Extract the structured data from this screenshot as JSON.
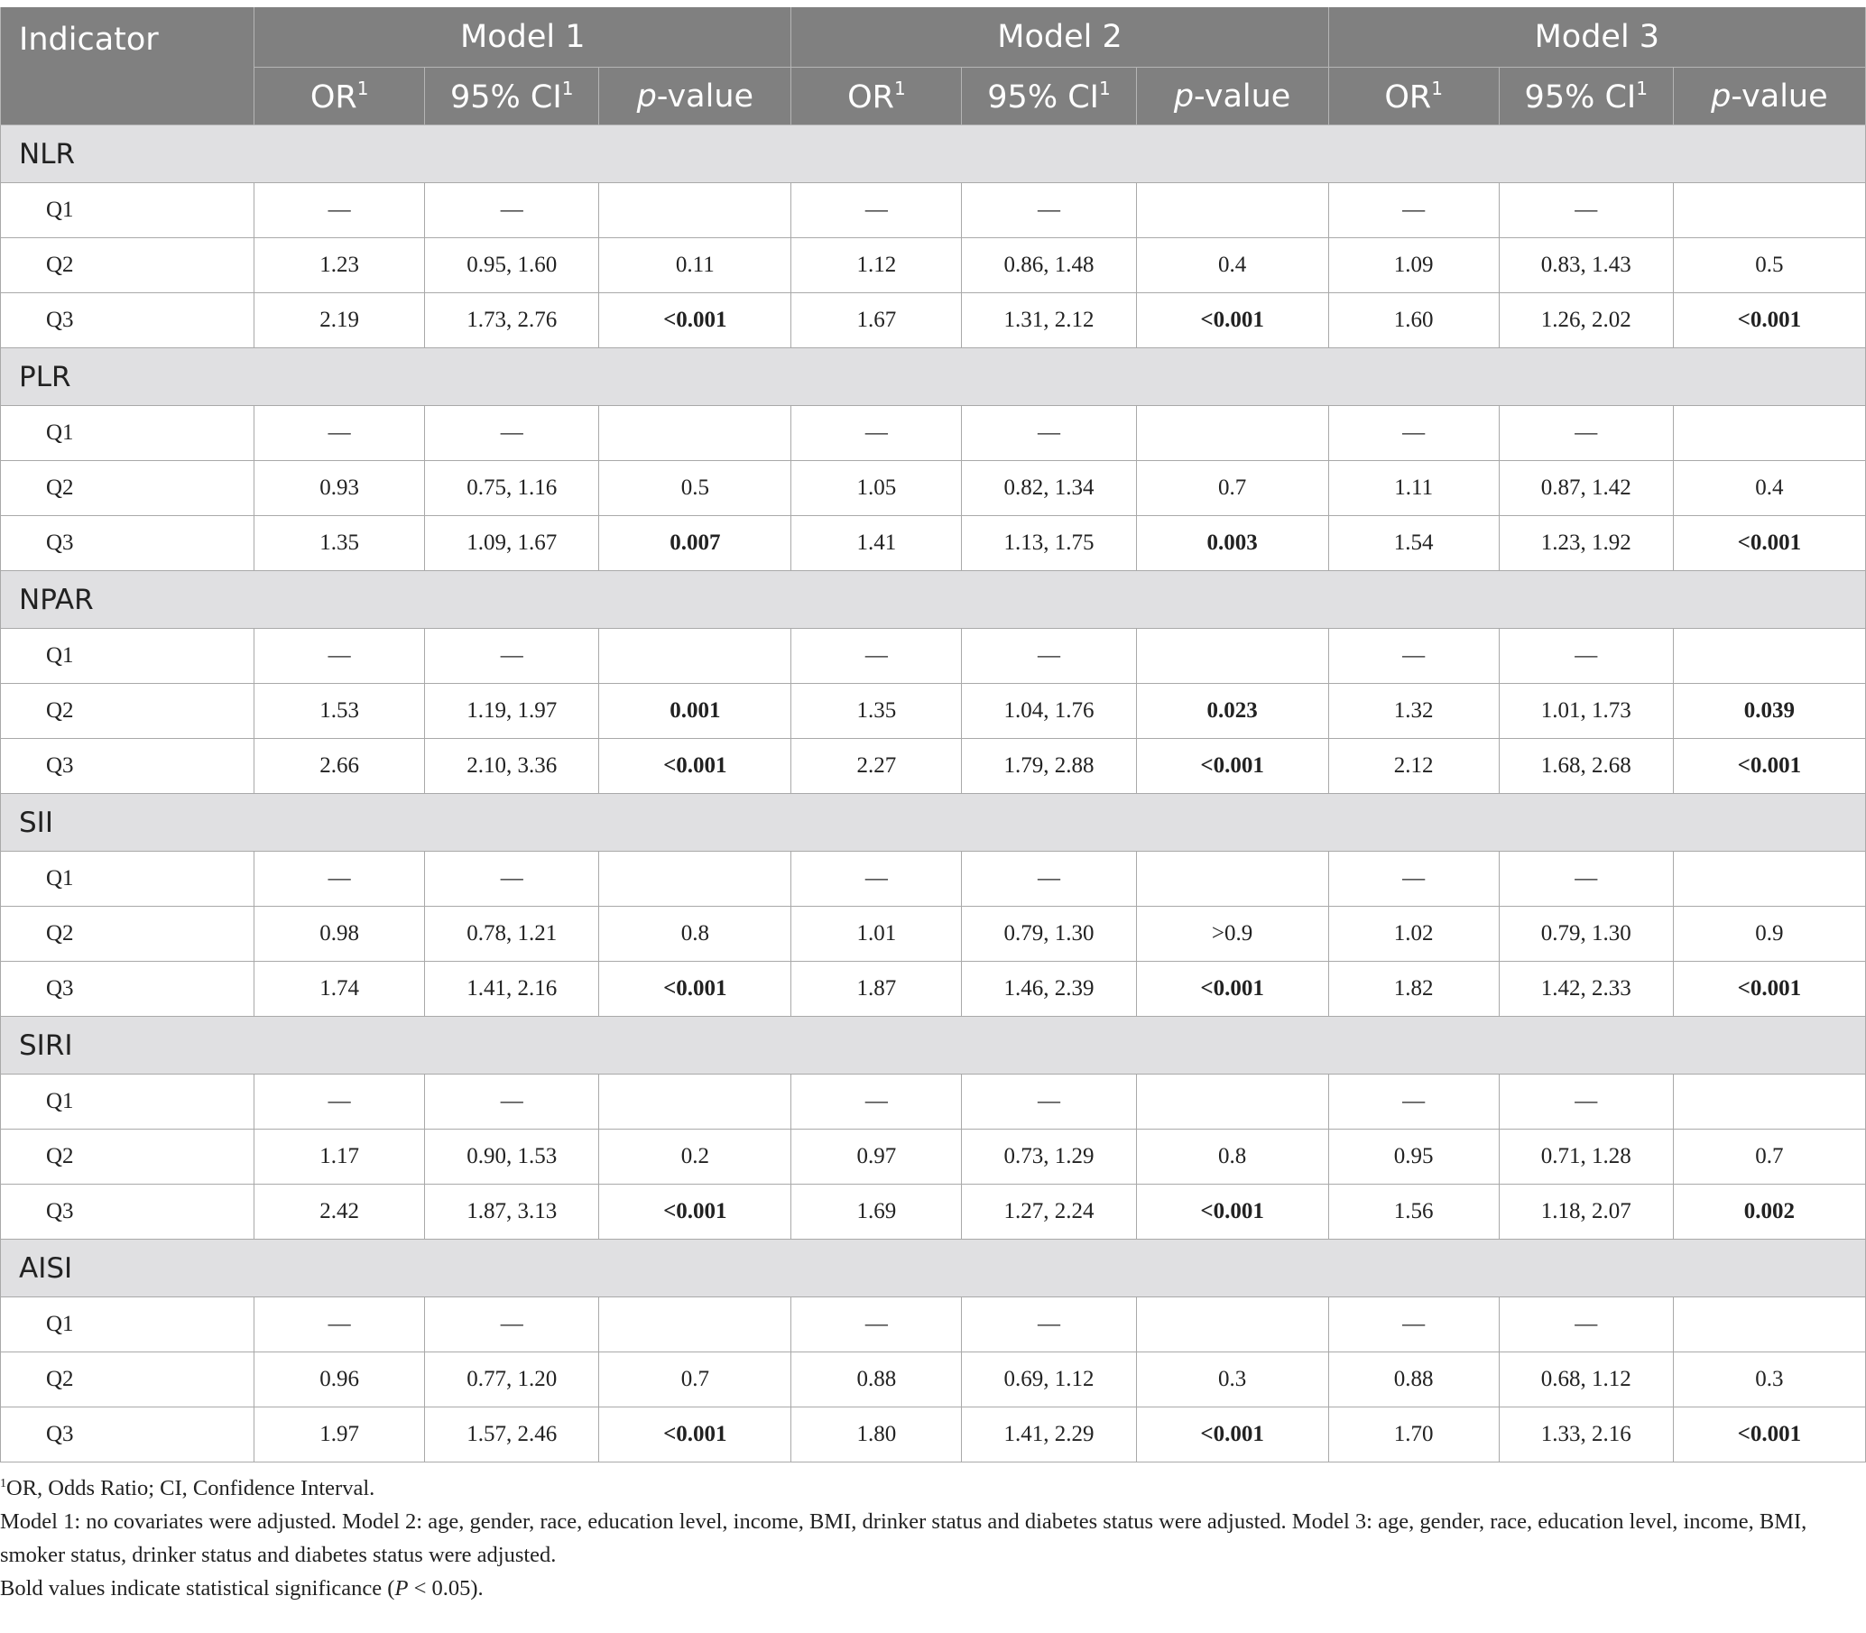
{
  "header": {
    "indicator": "Indicator",
    "models": [
      "Model 1",
      "Model 2",
      "Model 3"
    ],
    "sub": {
      "or": "OR",
      "ci": "95% CI",
      "p_italic": "p",
      "p_rest": "-value",
      "sup": "1"
    }
  },
  "groups": [
    {
      "name": "NLR",
      "rows": [
        {
          "label": "Q1",
          "cells": [
            {
              "v": "—"
            },
            {
              "v": "—"
            },
            {
              "v": ""
            },
            {
              "v": "—"
            },
            {
              "v": "—"
            },
            {
              "v": ""
            },
            {
              "v": "—"
            },
            {
              "v": "—"
            },
            {
              "v": ""
            }
          ]
        },
        {
          "label": "Q2",
          "cells": [
            {
              "v": "1.23"
            },
            {
              "v": "0.95, 1.60"
            },
            {
              "v": "0.11"
            },
            {
              "v": "1.12"
            },
            {
              "v": "0.86, 1.48"
            },
            {
              "v": "0.4"
            },
            {
              "v": "1.09"
            },
            {
              "v": "0.83, 1.43"
            },
            {
              "v": "0.5"
            }
          ]
        },
        {
          "label": "Q3",
          "cells": [
            {
              "v": "2.19"
            },
            {
              "v": "1.73, 2.76"
            },
            {
              "v": "<0.001",
              "b": true
            },
            {
              "v": "1.67"
            },
            {
              "v": "1.31, 2.12"
            },
            {
              "v": "<0.001",
              "b": true
            },
            {
              "v": "1.60"
            },
            {
              "v": "1.26, 2.02"
            },
            {
              "v": "<0.001",
              "b": true
            }
          ]
        }
      ]
    },
    {
      "name": "PLR",
      "rows": [
        {
          "label": "Q1",
          "cells": [
            {
              "v": "—"
            },
            {
              "v": "—"
            },
            {
              "v": ""
            },
            {
              "v": "—"
            },
            {
              "v": "—"
            },
            {
              "v": ""
            },
            {
              "v": "—"
            },
            {
              "v": "—"
            },
            {
              "v": ""
            }
          ]
        },
        {
          "label": "Q2",
          "cells": [
            {
              "v": "0.93"
            },
            {
              "v": "0.75, 1.16"
            },
            {
              "v": "0.5"
            },
            {
              "v": "1.05"
            },
            {
              "v": "0.82, 1.34"
            },
            {
              "v": "0.7"
            },
            {
              "v": "1.11"
            },
            {
              "v": "0.87, 1.42"
            },
            {
              "v": "0.4"
            }
          ]
        },
        {
          "label": "Q3",
          "cells": [
            {
              "v": "1.35"
            },
            {
              "v": "1.09, 1.67"
            },
            {
              "v": "0.007",
              "b": true
            },
            {
              "v": "1.41"
            },
            {
              "v": "1.13, 1.75"
            },
            {
              "v": "0.003",
              "b": true
            },
            {
              "v": "1.54"
            },
            {
              "v": "1.23, 1.92"
            },
            {
              "v": "<0.001",
              "b": true
            }
          ]
        }
      ]
    },
    {
      "name": "NPAR",
      "rows": [
        {
          "label": "Q1",
          "cells": [
            {
              "v": "—"
            },
            {
              "v": "—"
            },
            {
              "v": ""
            },
            {
              "v": "—"
            },
            {
              "v": "—"
            },
            {
              "v": ""
            },
            {
              "v": "—"
            },
            {
              "v": "—"
            },
            {
              "v": ""
            }
          ]
        },
        {
          "label": "Q2",
          "cells": [
            {
              "v": "1.53"
            },
            {
              "v": "1.19, 1.97"
            },
            {
              "v": "0.001",
              "b": true
            },
            {
              "v": "1.35"
            },
            {
              "v": "1.04, 1.76"
            },
            {
              "v": "0.023",
              "b": true
            },
            {
              "v": "1.32"
            },
            {
              "v": "1.01, 1.73"
            },
            {
              "v": "0.039",
              "b": true
            }
          ]
        },
        {
          "label": "Q3",
          "cells": [
            {
              "v": "2.66"
            },
            {
              "v": "2.10, 3.36"
            },
            {
              "v": "<0.001",
              "b": true
            },
            {
              "v": "2.27"
            },
            {
              "v": "1.79, 2.88"
            },
            {
              "v": "<0.001",
              "b": true
            },
            {
              "v": "2.12"
            },
            {
              "v": "1.68, 2.68"
            },
            {
              "v": "<0.001",
              "b": true
            }
          ]
        }
      ]
    },
    {
      "name": "SII",
      "rows": [
        {
          "label": "Q1",
          "cells": [
            {
              "v": "—"
            },
            {
              "v": "—"
            },
            {
              "v": ""
            },
            {
              "v": "—"
            },
            {
              "v": "—"
            },
            {
              "v": ""
            },
            {
              "v": "—"
            },
            {
              "v": "—"
            },
            {
              "v": ""
            }
          ]
        },
        {
          "label": "Q2",
          "cells": [
            {
              "v": "0.98"
            },
            {
              "v": "0.78, 1.21"
            },
            {
              "v": "0.8"
            },
            {
              "v": "1.01"
            },
            {
              "v": "0.79, 1.30"
            },
            {
              "v": ">0.9"
            },
            {
              "v": "1.02"
            },
            {
              "v": "0.79, 1.30"
            },
            {
              "v": "0.9"
            }
          ]
        },
        {
          "label": "Q3",
          "cells": [
            {
              "v": "1.74"
            },
            {
              "v": "1.41, 2.16"
            },
            {
              "v": "<0.001",
              "b": true
            },
            {
              "v": "1.87"
            },
            {
              "v": "1.46, 2.39"
            },
            {
              "v": "<0.001",
              "b": true
            },
            {
              "v": "1.82"
            },
            {
              "v": "1.42, 2.33"
            },
            {
              "v": "<0.001",
              "b": true
            }
          ]
        }
      ]
    },
    {
      "name": "SIRI",
      "rows": [
        {
          "label": "Q1",
          "cells": [
            {
              "v": "—"
            },
            {
              "v": "—"
            },
            {
              "v": ""
            },
            {
              "v": "—"
            },
            {
              "v": "—"
            },
            {
              "v": ""
            },
            {
              "v": "—"
            },
            {
              "v": "—"
            },
            {
              "v": ""
            }
          ]
        },
        {
          "label": "Q2",
          "cells": [
            {
              "v": "1.17"
            },
            {
              "v": "0.90, 1.53"
            },
            {
              "v": "0.2"
            },
            {
              "v": "0.97"
            },
            {
              "v": "0.73, 1.29"
            },
            {
              "v": "0.8"
            },
            {
              "v": "0.95"
            },
            {
              "v": "0.71, 1.28"
            },
            {
              "v": "0.7"
            }
          ]
        },
        {
          "label": "Q3",
          "cells": [
            {
              "v": "2.42"
            },
            {
              "v": "1.87, 3.13"
            },
            {
              "v": "<0.001",
              "b": true
            },
            {
              "v": "1.69"
            },
            {
              "v": "1.27, 2.24"
            },
            {
              "v": "<0.001",
              "b": true
            },
            {
              "v": "1.56"
            },
            {
              "v": "1.18, 2.07"
            },
            {
              "v": "0.002",
              "b": true
            }
          ]
        }
      ]
    },
    {
      "name": "AISI",
      "rows": [
        {
          "label": "Q1",
          "cells": [
            {
              "v": "—"
            },
            {
              "v": "—"
            },
            {
              "v": ""
            },
            {
              "v": "—"
            },
            {
              "v": "—"
            },
            {
              "v": ""
            },
            {
              "v": "—"
            },
            {
              "v": "—"
            },
            {
              "v": ""
            }
          ]
        },
        {
          "label": "Q2",
          "cells": [
            {
              "v": "0.96"
            },
            {
              "v": "0.77, 1.20"
            },
            {
              "v": "0.7"
            },
            {
              "v": "0.88"
            },
            {
              "v": "0.69, 1.12"
            },
            {
              "v": "0.3"
            },
            {
              "v": "0.88"
            },
            {
              "v": "0.68, 1.12"
            },
            {
              "v": "0.3"
            }
          ]
        },
        {
          "label": "Q3",
          "cells": [
            {
              "v": "1.97"
            },
            {
              "v": "1.57, 2.46"
            },
            {
              "v": "<0.001",
              "b": true
            },
            {
              "v": "1.80"
            },
            {
              "v": "1.41, 2.29"
            },
            {
              "v": "<0.001",
              "b": true
            },
            {
              "v": "1.70"
            },
            {
              "v": "1.33, 2.16"
            },
            {
              "v": "<0.001",
              "b": true
            }
          ]
        }
      ]
    }
  ],
  "footnotes": {
    "abbrev_sup": "1",
    "abbrev": "OR, Odds Ratio; CI, Confidence Interval.",
    "models": "Model 1: no covariates were adjusted. Model 2: age, gender, race, education level, income, BMI, drinker status and diabetes status were adjusted. Model 3: age, gender, race, education level, income, BMI, smoker status, drinker status and diabetes status were adjusted.",
    "bold_pre": "Bold values indicate statistical significance (",
    "bold_p": "P",
    "bold_post": " < 0.05)."
  }
}
